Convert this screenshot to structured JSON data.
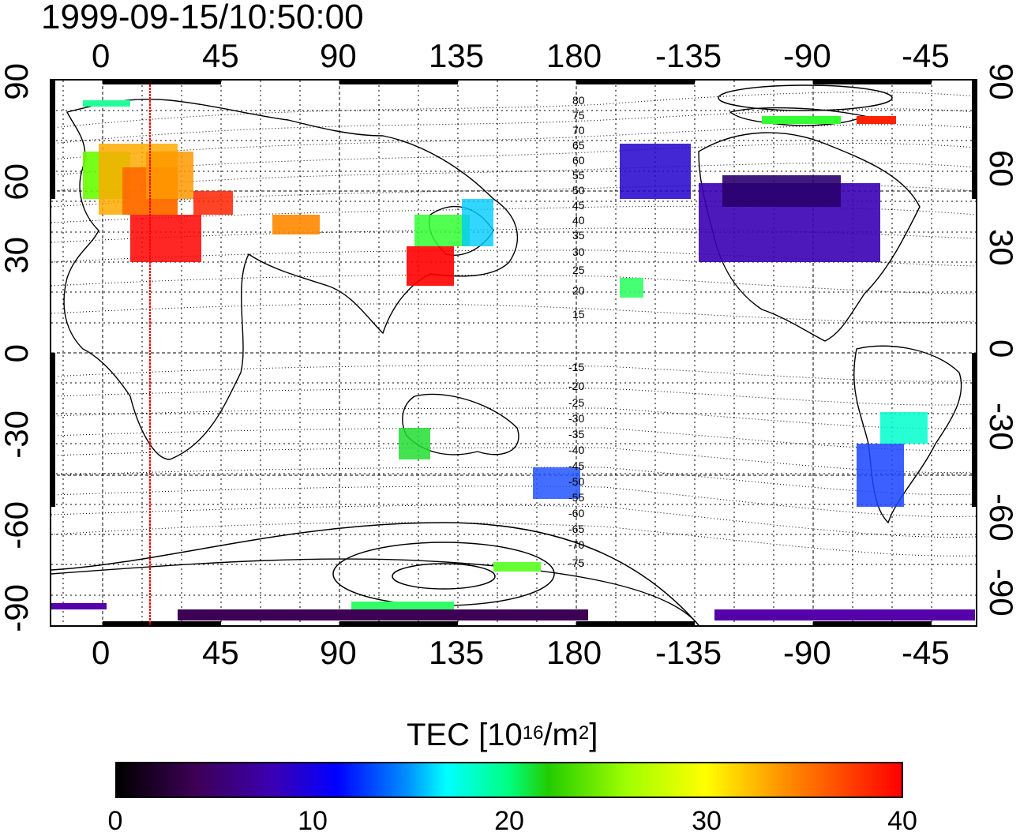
{
  "title": {
    "timestamp": "1999-09-15/10:50:00"
  },
  "map": {
    "lon_ticks_top": [
      "0",
      "45",
      "90",
      "135",
      "180",
      "-135",
      "-90",
      "-45"
    ],
    "lon_ticks_bottom": [
      "0",
      "45",
      "90",
      "135",
      "180",
      "-135",
      "-90",
      "-45"
    ],
    "lat_ticks_left": [
      "90",
      "60",
      "30",
      "0",
      "-30",
      "-60",
      "-90"
    ],
    "lat_ticks_right": [
      "90",
      "60",
      "30",
      "0",
      "-30",
      "-60",
      "-90"
    ],
    "contour_labels": [
      "80",
      "75",
      "70",
      "65",
      "60",
      "55",
      "50",
      "45",
      "40",
      "35",
      "30",
      "25",
      "20",
      "15",
      "-15",
      "-20",
      "-25",
      "-30",
      "-35",
      "-40",
      "-45",
      "-50",
      "-55",
      "-60",
      "-65",
      "-70",
      "-75"
    ],
    "colors": {
      "marker_line": "#ff0000",
      "frame": "#000000"
    }
  },
  "colorbar": {
    "title": "TEC [10",
    "title_sup": "16",
    "title_unit": "/m",
    "title_sup2": "2",
    "title_end": "]",
    "ticks": [
      "0",
      "10",
      "20",
      "30",
      "40"
    ],
    "range": [
      0,
      40
    ],
    "colormap": "jet-like (black-purple-blue-cyan-green-yellow-red)"
  }
}
